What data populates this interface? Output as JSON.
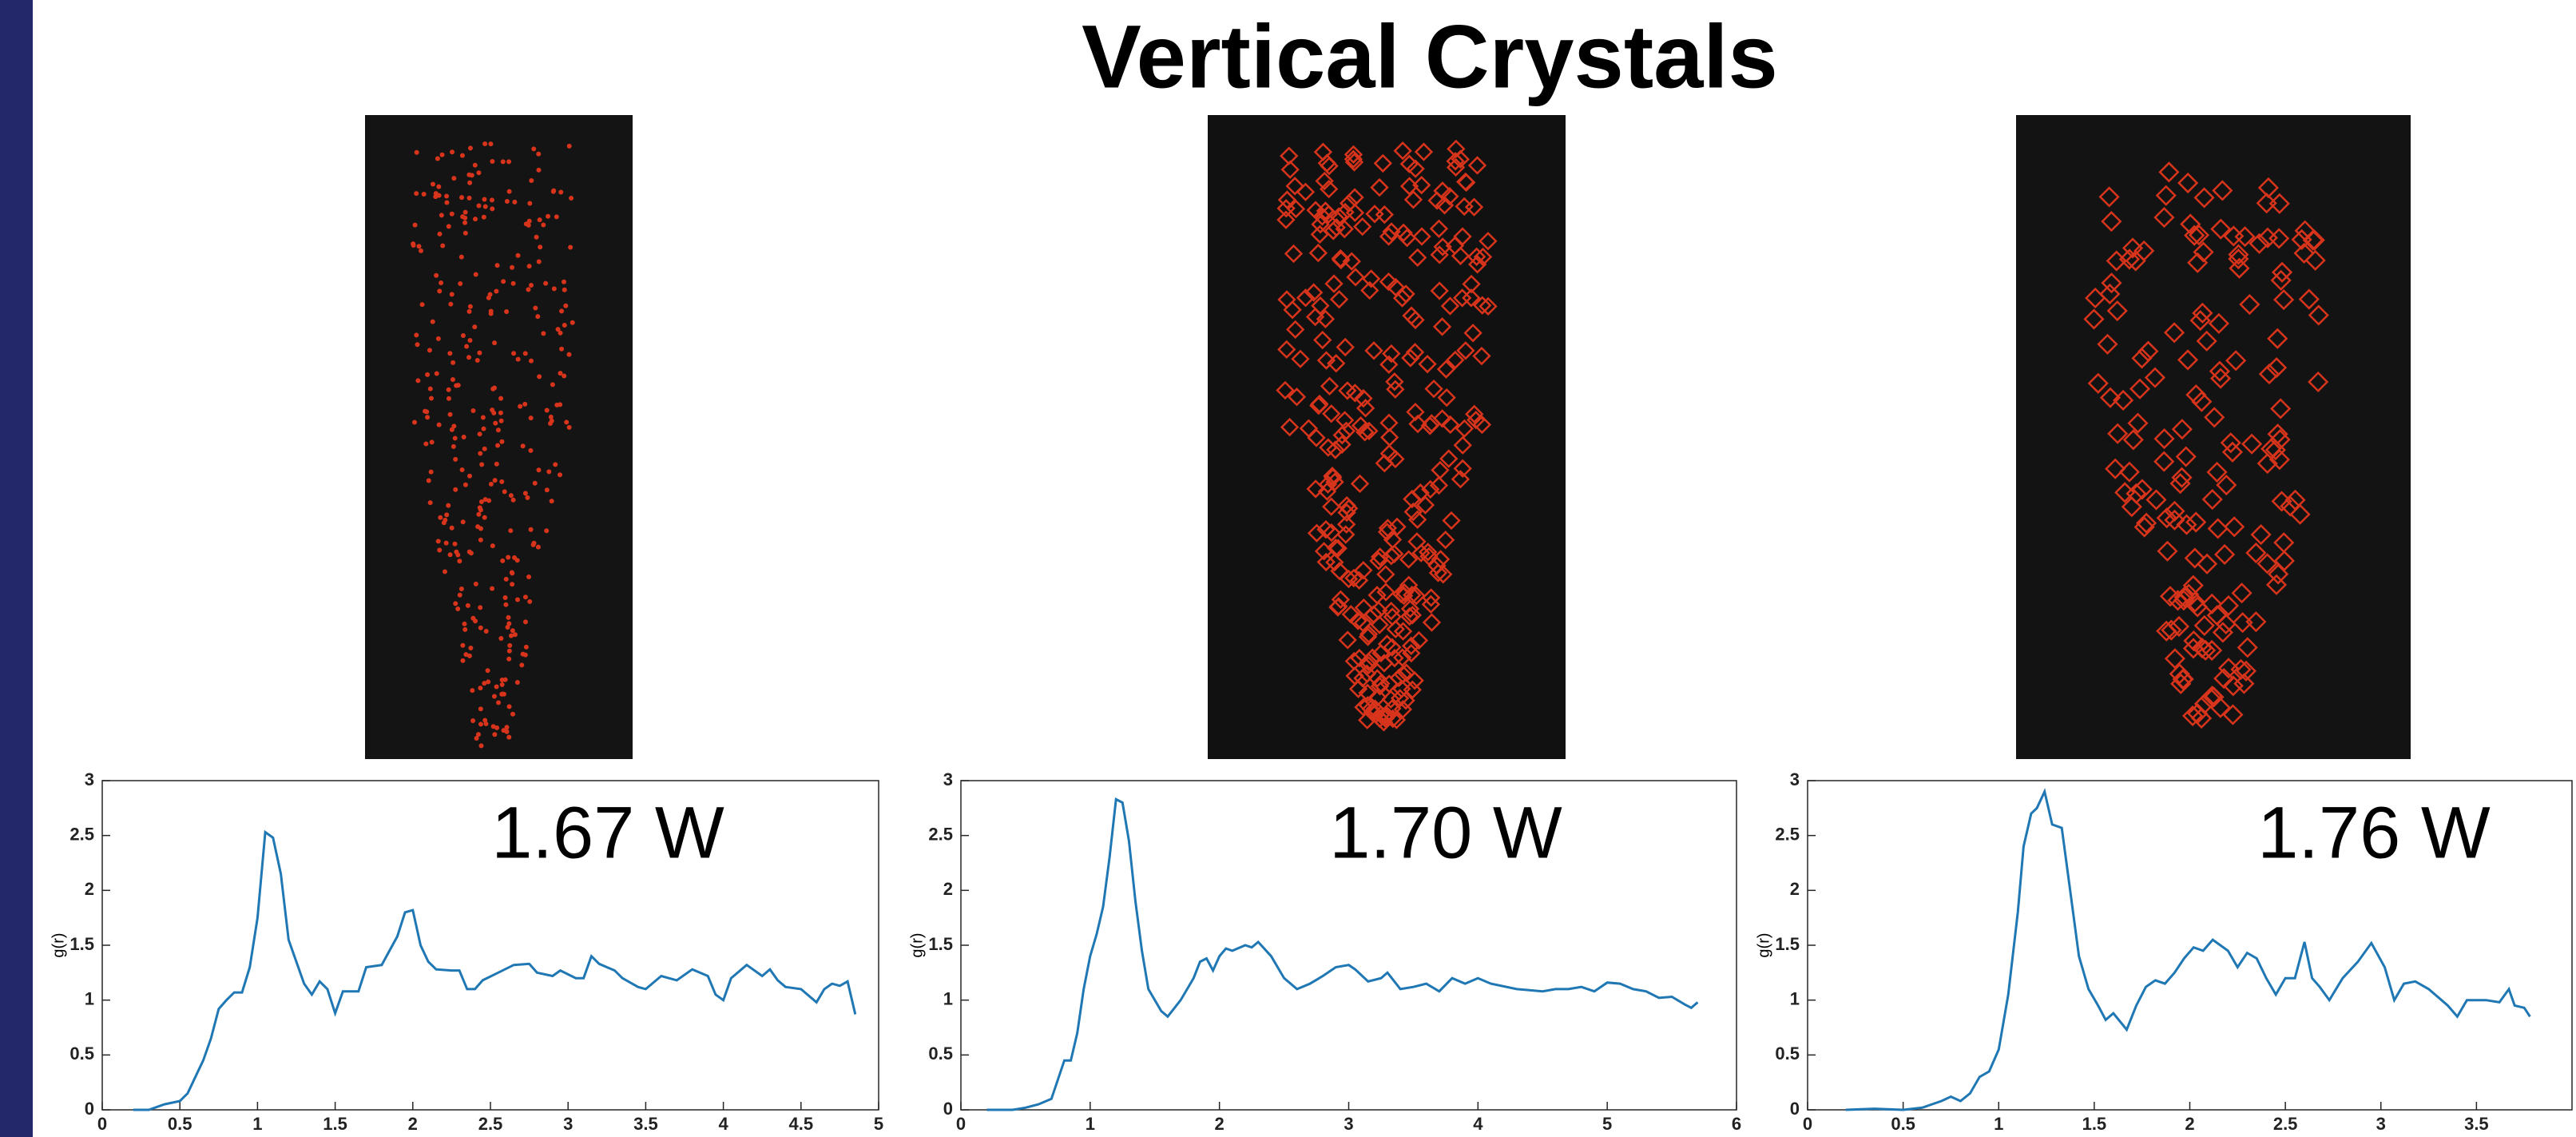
{
  "title": "Vertical Crystals",
  "chart_data": [
    {
      "type": "line",
      "annotation": "1.67 W",
      "ylabel": "g(r)",
      "xlim": [
        0,
        5
      ],
      "ylim": [
        0,
        3
      ],
      "xticks": [
        0,
        0.5,
        1,
        1.5,
        2,
        2.5,
        3,
        3.5,
        4,
        4.5,
        5
      ],
      "yticks": [
        0,
        0.5,
        1,
        1.5,
        2,
        2.5,
        3
      ],
      "x": [
        0.2,
        0.3,
        0.4,
        0.5,
        0.55,
        0.6,
        0.65,
        0.7,
        0.75,
        0.8,
        0.85,
        0.9,
        0.95,
        1.0,
        1.05,
        1.1,
        1.15,
        1.2,
        1.25,
        1.3,
        1.35,
        1.4,
        1.45,
        1.5,
        1.55,
        1.65,
        1.7,
        1.8,
        1.85,
        1.9,
        1.95,
        2.0,
        2.05,
        2.1,
        2.15,
        2.25,
        2.3,
        2.35,
        2.4,
        2.45,
        2.55,
        2.65,
        2.75,
        2.8,
        2.9,
        2.95,
        3.05,
        3.1,
        3.15,
        3.2,
        3.3,
        3.35,
        3.45,
        3.5,
        3.6,
        3.7,
        3.8,
        3.9,
        3.95,
        4.0,
        4.05,
        4.15,
        4.25,
        4.3,
        4.35,
        4.4,
        4.5,
        4.6,
        4.65,
        4.7,
        4.75,
        4.8,
        4.85
      ],
      "series": [
        {
          "color": "#1f77b4",
          "values": [
            0,
            0,
            0.05,
            0.08,
            0.15,
            0.3,
            0.45,
            0.65,
            0.92,
            1.0,
            1.07,
            1.07,
            1.3,
            1.75,
            2.53,
            2.48,
            2.15,
            1.55,
            1.35,
            1.15,
            1.05,
            1.17,
            1.1,
            0.88,
            1.08,
            1.08,
            1.3,
            1.32,
            1.45,
            1.58,
            1.8,
            1.82,
            1.5,
            1.35,
            1.28,
            1.27,
            1.27,
            1.1,
            1.1,
            1.18,
            1.25,
            1.32,
            1.33,
            1.25,
            1.22,
            1.27,
            1.2,
            1.2,
            1.4,
            1.33,
            1.27,
            1.2,
            1.12,
            1.1,
            1.22,
            1.18,
            1.28,
            1.22,
            1.05,
            1.0,
            1.2,
            1.32,
            1.22,
            1.28,
            1.18,
            1.12,
            1.1,
            0.98,
            1.1,
            1.15,
            1.13,
            1.17,
            0.87
          ]
        }
      ]
    },
    {
      "type": "line",
      "annotation": "1.70 W",
      "ylabel": "g(r)",
      "xlim": [
        0,
        6
      ],
      "ylim": [
        0,
        3
      ],
      "xticks": [
        0,
        1,
        2,
        3,
        4,
        5,
        6
      ],
      "yticks": [
        0,
        0.5,
        1,
        1.5,
        2,
        2.5,
        3
      ],
      "x": [
        0.2,
        0.4,
        0.5,
        0.6,
        0.7,
        0.8,
        0.85,
        0.9,
        0.95,
        1.0,
        1.05,
        1.1,
        1.15,
        1.2,
        1.25,
        1.3,
        1.35,
        1.4,
        1.45,
        1.55,
        1.6,
        1.7,
        1.8,
        1.85,
        1.9,
        1.95,
        2.0,
        2.05,
        2.1,
        2.2,
        2.25,
        2.3,
        2.4,
        2.5,
        2.6,
        2.7,
        2.8,
        2.9,
        3.0,
        3.05,
        3.15,
        3.25,
        3.3,
        3.4,
        3.5,
        3.6,
        3.7,
        3.8,
        3.9,
        4.0,
        4.1,
        4.3,
        4.5,
        4.6,
        4.7,
        4.8,
        4.9,
        5.0,
        5.1,
        5.2,
        5.3,
        5.4,
        5.5,
        5.6,
        5.65,
        5.7
      ],
      "series": [
        {
          "color": "#1f77b4",
          "values": [
            0,
            0,
            0.02,
            0.05,
            0.1,
            0.45,
            0.45,
            0.7,
            1.1,
            1.4,
            1.6,
            1.85,
            2.3,
            2.83,
            2.8,
            2.45,
            1.9,
            1.45,
            1.1,
            0.9,
            0.85,
            1.0,
            1.2,
            1.35,
            1.38,
            1.27,
            1.4,
            1.47,
            1.45,
            1.5,
            1.48,
            1.53,
            1.4,
            1.2,
            1.1,
            1.15,
            1.22,
            1.3,
            1.32,
            1.28,
            1.17,
            1.2,
            1.25,
            1.1,
            1.12,
            1.15,
            1.08,
            1.2,
            1.15,
            1.2,
            1.15,
            1.1,
            1.08,
            1.1,
            1.1,
            1.12,
            1.08,
            1.16,
            1.15,
            1.1,
            1.08,
            1.02,
            1.03,
            0.96,
            0.93,
            0.98
          ]
        }
      ]
    },
    {
      "type": "line",
      "annotation": "1.76 W",
      "ylabel": "g(r)",
      "xlim": [
        0,
        4
      ],
      "ylim": [
        0,
        3
      ],
      "xticks": [
        0,
        0.5,
        1,
        1.5,
        2,
        2.5,
        3,
        3.5
      ],
      "yticks": [
        0,
        0.5,
        1,
        1.5,
        2,
        2.5,
        3
      ],
      "x": [
        0.2,
        0.35,
        0.5,
        0.6,
        0.7,
        0.75,
        0.8,
        0.85,
        0.9,
        0.95,
        1.0,
        1.05,
        1.1,
        1.13,
        1.17,
        1.2,
        1.24,
        1.28,
        1.33,
        1.37,
        1.42,
        1.47,
        1.52,
        1.56,
        1.6,
        1.67,
        1.72,
        1.77,
        1.82,
        1.87,
        1.92,
        1.97,
        2.02,
        2.07,
        2.12,
        2.2,
        2.25,
        2.3,
        2.35,
        2.4,
        2.45,
        2.5,
        2.55,
        2.6,
        2.64,
        2.68,
        2.73,
        2.8,
        2.88,
        2.95,
        3.02,
        3.07,
        3.12,
        3.18,
        3.25,
        3.35,
        3.4,
        3.45,
        3.55,
        3.62,
        3.67,
        3.7,
        3.75,
        3.78
      ],
      "series": [
        {
          "color": "#1f77b4",
          "values": [
            0,
            0.01,
            0,
            0.02,
            0.08,
            0.12,
            0.08,
            0.15,
            0.3,
            0.35,
            0.55,
            1.05,
            1.8,
            2.4,
            2.7,
            2.75,
            2.9,
            2.6,
            2.57,
            2.05,
            1.4,
            1.1,
            0.95,
            0.82,
            0.88,
            0.73,
            0.95,
            1.12,
            1.18,
            1.15,
            1.25,
            1.38,
            1.48,
            1.45,
            1.55,
            1.45,
            1.3,
            1.43,
            1.38,
            1.2,
            1.05,
            1.2,
            1.2,
            1.53,
            1.2,
            1.12,
            1.0,
            1.2,
            1.35,
            1.52,
            1.3,
            1.0,
            1.15,
            1.17,
            1.1,
            0.95,
            0.85,
            1.0,
            1.0,
            0.98,
            1.1,
            0.95,
            0.93,
            0.85
          ]
        }
      ]
    }
  ]
}
